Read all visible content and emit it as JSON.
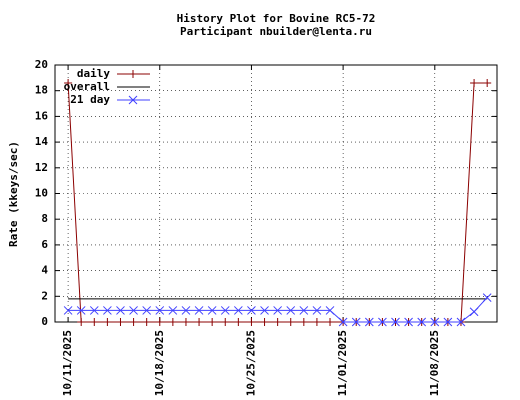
{
  "chart_data": {
    "type": "line",
    "title": "History Plot for Bovine RC5-72",
    "subtitle": "Participant nbuilder@lenta.ru",
    "y_label": "Rate (kkeys/sec)",
    "x": [
      "2025-10-11",
      "2025-10-12",
      "2025-10-13",
      "2025-10-14",
      "2025-10-15",
      "2025-10-16",
      "2025-10-17",
      "2025-10-18",
      "2025-10-19",
      "2025-10-20",
      "2025-10-21",
      "2025-10-22",
      "2025-10-23",
      "2025-10-24",
      "2025-10-25",
      "2025-10-26",
      "2025-10-27",
      "2025-10-28",
      "2025-10-29",
      "2025-10-30",
      "2025-10-31",
      "2025-11-01",
      "2025-11-02",
      "2025-11-03",
      "2025-11-04",
      "2025-11-05",
      "2025-11-06",
      "2025-11-07",
      "2025-11-08",
      "2025-11-09",
      "2025-11-10",
      "2025-11-11",
      "2025-11-12"
    ],
    "series": [
      {
        "name": "daily",
        "color": "#8b0000",
        "marker": "plus",
        "values": [
          18.6,
          0,
          0,
          0,
          0,
          0,
          0,
          0,
          0,
          0,
          0,
          0,
          0,
          0,
          0,
          0,
          0,
          0,
          0,
          0,
          0,
          0,
          0,
          0,
          0,
          0,
          0,
          0,
          0,
          0,
          0,
          18.6,
          18.6
        ]
      },
      {
        "name": "overall",
        "color": "#000000",
        "marker": "none",
        "values": [
          1.8,
          1.8,
          1.8,
          1.8,
          1.8,
          1.8,
          1.8,
          1.8,
          1.8,
          1.8,
          1.8,
          1.8,
          1.8,
          1.8,
          1.8,
          1.8,
          1.8,
          1.8,
          1.8,
          1.8,
          1.8,
          1.8,
          1.8,
          1.8,
          1.8,
          1.8,
          1.8,
          1.8,
          1.8,
          1.8,
          1.8,
          1.8,
          1.8
        ]
      },
      {
        "name": "21 day",
        "color": "#4040ff",
        "marker": "cross",
        "values": [
          0.9,
          0.9,
          0.9,
          0.9,
          0.9,
          0.9,
          0.9,
          0.9,
          0.9,
          0.9,
          0.9,
          0.9,
          0.9,
          0.9,
          0.9,
          0.9,
          0.9,
          0.9,
          0.9,
          0.9,
          0.9,
          0,
          0,
          0,
          0,
          0,
          0,
          0,
          0,
          0,
          0,
          0.8,
          1.9
        ]
      }
    ],
    "xlim": [
      "2025-10-10",
      "2025-11-12T18:00"
    ],
    "xticks": [
      {
        "value": "2025-10-11",
        "label": "10/11/2025"
      },
      {
        "value": "2025-10-18",
        "label": "10/18/2025"
      },
      {
        "value": "2025-10-25",
        "label": "10/25/2025"
      },
      {
        "value": "2025-11-01",
        "label": "11/01/2025"
      },
      {
        "value": "2025-11-08",
        "label": "11/08/2025"
      }
    ],
    "ylim": [
      0,
      20
    ],
    "yticks": [
      0,
      2,
      4,
      6,
      8,
      10,
      12,
      14,
      16,
      18,
      20
    ],
    "grid": true,
    "legend": "top-left"
  }
}
